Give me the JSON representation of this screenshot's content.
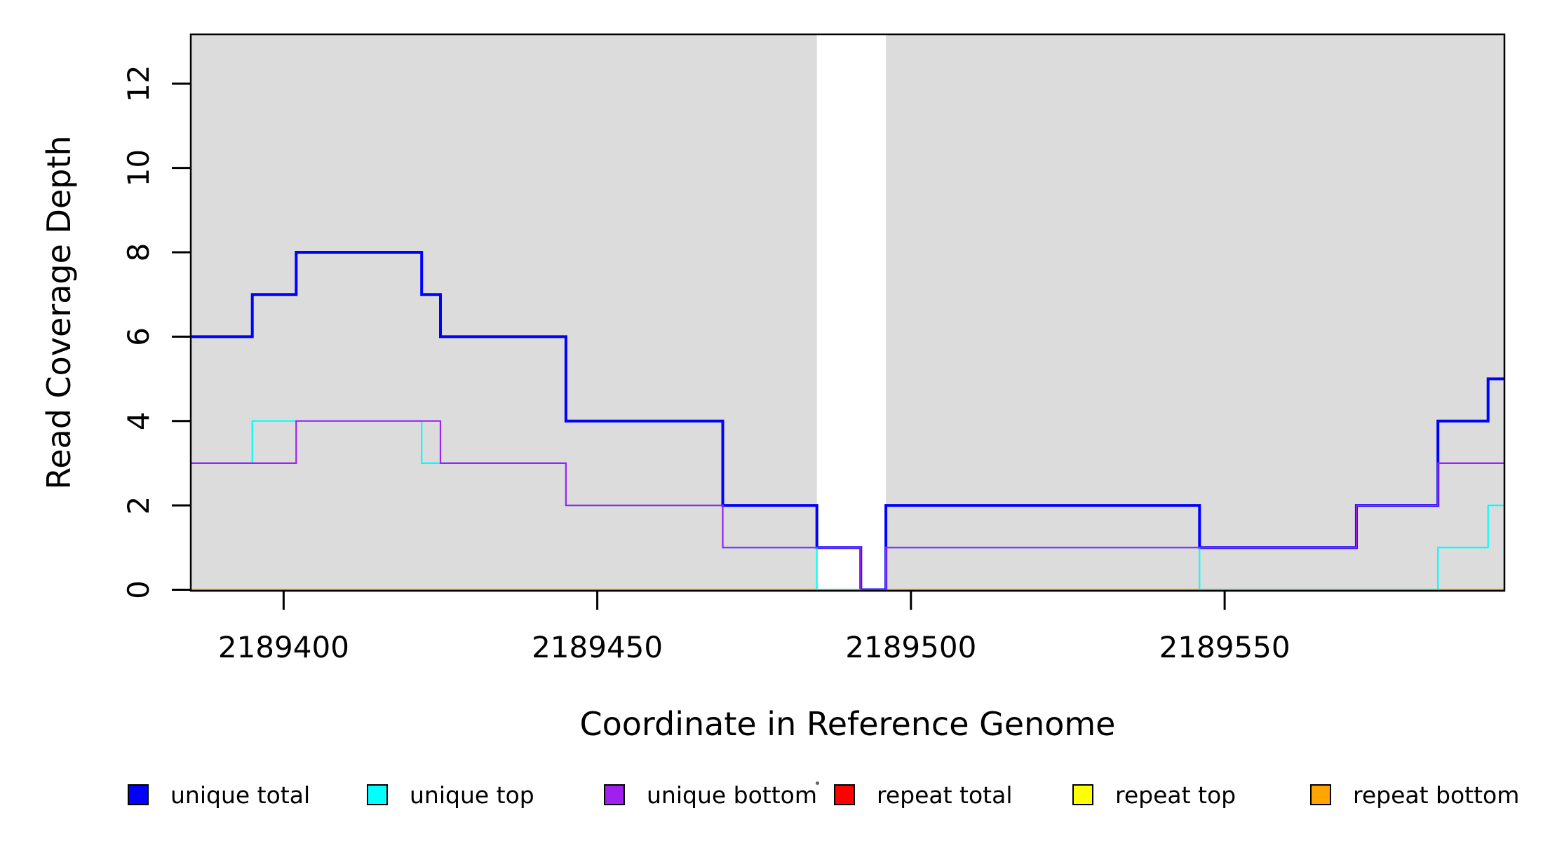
{
  "figure": {
    "background_color": "#FFFFFF",
    "shading_color": "#DCDCDC",
    "axis_color": "#000000",
    "text_color": "#000000"
  },
  "chart_data": {
    "type": "line",
    "subtype": "step-staircase",
    "title": "",
    "xlabel": "Coordinate in Reference Genome",
    "ylabel": "Read Coverage Depth",
    "x_ticks": [
      2189400,
      2189450,
      2189500,
      2189550
    ],
    "y_ticks": [
      0,
      2,
      4,
      6,
      8,
      10,
      12
    ],
    "xlim": [
      2189385.2,
      2189594.6
    ],
    "ylim": [
      0,
      13.15
    ],
    "grid": false,
    "legend_position": "bottom-horizontal",
    "shaded_regions": [
      {
        "x_start": 2189385.2,
        "x_end": 2189485,
        "color": "#DCDCDC"
      },
      {
        "x_start": 2189496,
        "x_end": 2189594.6,
        "color": "#DCDCDC"
      }
    ],
    "series": [
      {
        "name": "repeat total",
        "color": "#FF0000",
        "line_width": 2.2,
        "steps": [
          [
            2189385.2,
            0
          ]
        ]
      },
      {
        "name": "repeat top",
        "color": "#FFFF00",
        "line_width": 2.2,
        "steps": [
          [
            2189385.2,
            0
          ]
        ]
      },
      {
        "name": "repeat bottom",
        "color": "#FFA500",
        "line_width": 3,
        "steps": [
          [
            2189385.2,
            0
          ]
        ]
      },
      {
        "name": "unique total",
        "color": "#0000FF",
        "line_width": 4,
        "steps": [
          [
            2189385.2,
            6
          ],
          [
            2189395,
            7
          ],
          [
            2189402,
            8
          ],
          [
            2189422,
            7
          ],
          [
            2189425,
            6
          ],
          [
            2189445,
            4
          ],
          [
            2189470,
            2
          ],
          [
            2189485,
            1
          ],
          [
            2189492,
            0
          ],
          [
            2189496,
            2
          ],
          [
            2189546,
            1
          ],
          [
            2189571,
            2
          ],
          [
            2189584,
            4
          ],
          [
            2189592,
            5
          ]
        ]
      },
      {
        "name": "unique top",
        "color": "#00FFFF",
        "line_width": 2.2,
        "steps": [
          [
            2189385.2,
            3
          ],
          [
            2189395,
            4
          ],
          [
            2189422,
            3
          ],
          [
            2189445,
            2
          ],
          [
            2189470,
            1
          ],
          [
            2189485,
            0
          ],
          [
            2189496,
            1
          ],
          [
            2189546,
            0
          ],
          [
            2189584,
            1
          ],
          [
            2189592,
            2
          ]
        ]
      },
      {
        "name": "unique bottom",
        "color": "#A020F0",
        "line_width": 2.2,
        "steps": [
          [
            2189385.2,
            3
          ],
          [
            2189402,
            4
          ],
          [
            2189425,
            3
          ],
          [
            2189445,
            2
          ],
          [
            2189470,
            1
          ],
          [
            2189492,
            0
          ],
          [
            2189496,
            1
          ],
          [
            2189571,
            2
          ],
          [
            2189584,
            3
          ]
        ]
      }
    ]
  },
  "legend": {
    "items": [
      {
        "label": "unique total",
        "color": "#0000FF"
      },
      {
        "label": "unique top",
        "color": "#00FFFF"
      },
      {
        "label": "unique bottom",
        "color": "#A020F0"
      },
      {
        "label": "repeat total",
        "color": "#FF0000"
      },
      {
        "label": "repeat top",
        "color": "#FFFF00"
      },
      {
        "label": "repeat bottom",
        "color": "#FFA500"
      }
    ]
  }
}
